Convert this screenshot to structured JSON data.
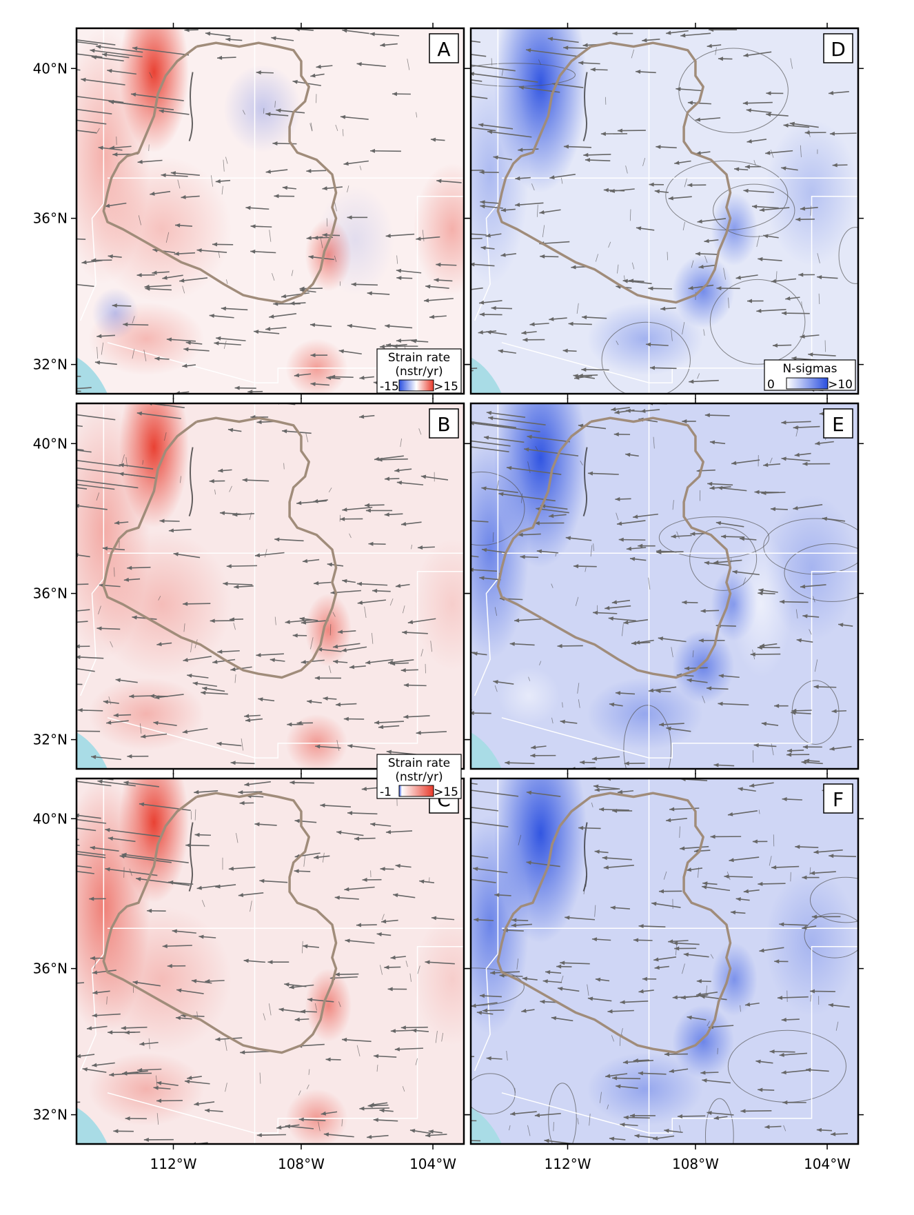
{
  "figure": {
    "panels": [
      {
        "id": "A",
        "label": "A",
        "field": "strain"
      },
      {
        "id": "B",
        "label": "B",
        "field": "strain"
      },
      {
        "id": "C",
        "label": "C",
        "field": "strain"
      },
      {
        "id": "D",
        "label": "D",
        "field": "nsigma"
      },
      {
        "id": "E",
        "label": "E",
        "field": "nsigma"
      },
      {
        "id": "F",
        "label": "F",
        "field": "nsigma"
      }
    ],
    "lat_labels": [
      "40°N",
      "36°N",
      "32°N"
    ],
    "lon_labels": [
      "112°W",
      "108°W",
      "104°W"
    ],
    "colorbars": {
      "strain_a": {
        "title_line1": "Strain rate",
        "title_line2": "(nstr/yr)",
        "min_label": "-15",
        "max_label": ">15"
      },
      "strain_b": {
        "title_line1": "Strain rate",
        "title_line2": "(nstr/yr)",
        "min_label": "-1",
        "max_label": ">15"
      },
      "nsigma": {
        "title": "N-sigmas",
        "min_label": "0",
        "max_label": ">10"
      }
    },
    "colors": {
      "positive": "#e8392a",
      "negative": "#2a4fe0",
      "outline": "#a08c7a",
      "arrows": "#666666",
      "water": "#a9dce6",
      "state_lines": "#ffffff"
    }
  }
}
